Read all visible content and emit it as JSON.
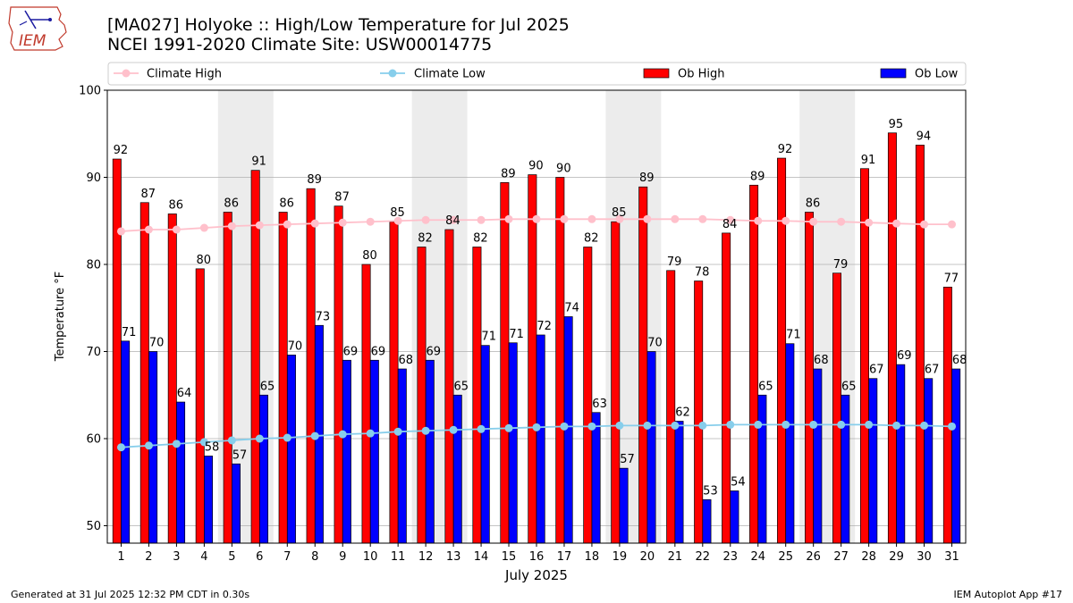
{
  "page": {
    "title_line1": "[MA027] Holyoke  :: High/Low Temperature for Jul 2025",
    "title_line2": "NCEI 1991-2020 Climate Site: USW00014775",
    "footer_left": "Generated at 31 Jul 2025 12:32 PM CDT in 0.30s",
    "footer_right": "IEM Autoplot App #17",
    "logo_text": "IEM"
  },
  "chart_data": {
    "type": "bar",
    "xlabel": "July 2025",
    "ylabel": "Temperature °F",
    "ylim": [
      48,
      100
    ],
    "yticks": [
      50,
      60,
      70,
      80,
      90,
      100
    ],
    "grid": "y",
    "categories": [
      "1",
      "2",
      "3",
      "4",
      "5",
      "6",
      "7",
      "8",
      "9",
      "10",
      "11",
      "12",
      "13",
      "14",
      "15",
      "16",
      "17",
      "18",
      "19",
      "20",
      "21",
      "22",
      "23",
      "24",
      "25",
      "26",
      "27",
      "28",
      "29",
      "30",
      "31"
    ],
    "weekend_shading": [
      [
        5,
        6
      ],
      [
        12,
        13
      ],
      [
        19,
        20
      ],
      [
        26,
        27
      ]
    ],
    "legend": {
      "placement": "top",
      "entries": [
        "Climate High",
        "Climate Low",
        "Ob High",
        "Ob Low"
      ]
    },
    "series": [
      {
        "name": "Ob High",
        "kind": "bar",
        "color": "#ff0000",
        "values": [
          92.1,
          87.1,
          85.8,
          79.5,
          86.0,
          90.8,
          86.0,
          88.7,
          86.7,
          80.0,
          84.9,
          82.0,
          84.0,
          82.0,
          89.4,
          90.3,
          90.0,
          82.0,
          84.9,
          88.9,
          79.3,
          78.1,
          83.6,
          89.1,
          92.2,
          86.0,
          79.0,
          91.0,
          95.1,
          93.7,
          77.4
        ],
        "labels": [
          "92",
          "87",
          "86",
          "80",
          "86",
          "91",
          "86",
          "89",
          "87",
          "80",
          "85",
          "82",
          "84",
          "82",
          "89",
          "90",
          "90",
          "82",
          "85",
          "89",
          "79",
          "78",
          "84",
          "89",
          "92",
          "86",
          "79",
          "91",
          "95",
          "94",
          "77"
        ]
      },
      {
        "name": "Ob Low",
        "kind": "bar",
        "color": "#0000ff",
        "values": [
          71.2,
          70.0,
          64.2,
          58.0,
          57.1,
          65.0,
          69.6,
          73.0,
          69.0,
          69.0,
          68.0,
          69.0,
          65.0,
          70.7,
          71.0,
          71.9,
          74.0,
          63.0,
          56.6,
          70.0,
          62.0,
          53.0,
          54.0,
          65.0,
          70.9,
          68.0,
          65.0,
          66.9,
          68.5,
          66.9,
          68.0
        ],
        "labels": [
          "71",
          "70",
          "64",
          "58",
          "57",
          "65",
          "70",
          "73",
          "69",
          "69",
          "68",
          "69",
          "65",
          "71",
          "71",
          "72",
          "74",
          "63",
          "57",
          "70",
          "62",
          "53",
          "54",
          "65",
          "71",
          "68",
          "65",
          "67",
          "69",
          "67",
          "68"
        ]
      },
      {
        "name": "Climate High",
        "kind": "line",
        "color": "#ffc0cb",
        "values": [
          83.8,
          84.0,
          84.0,
          84.2,
          84.4,
          84.5,
          84.6,
          84.7,
          84.8,
          84.9,
          85.0,
          85.1,
          85.1,
          85.1,
          85.2,
          85.2,
          85.2,
          85.2,
          85.2,
          85.2,
          85.2,
          85.2,
          85.1,
          85.0,
          85.0,
          84.9,
          84.9,
          84.8,
          84.7,
          84.6,
          84.6
        ]
      },
      {
        "name": "Climate Low",
        "kind": "line",
        "color": "#87ceeb",
        "values": [
          59.0,
          59.2,
          59.4,
          59.6,
          59.8,
          60.0,
          60.1,
          60.3,
          60.5,
          60.6,
          60.8,
          60.9,
          61.0,
          61.1,
          61.2,
          61.3,
          61.4,
          61.4,
          61.5,
          61.5,
          61.5,
          61.5,
          61.6,
          61.6,
          61.6,
          61.6,
          61.6,
          61.6,
          61.5,
          61.5,
          61.4
        ]
      }
    ]
  }
}
